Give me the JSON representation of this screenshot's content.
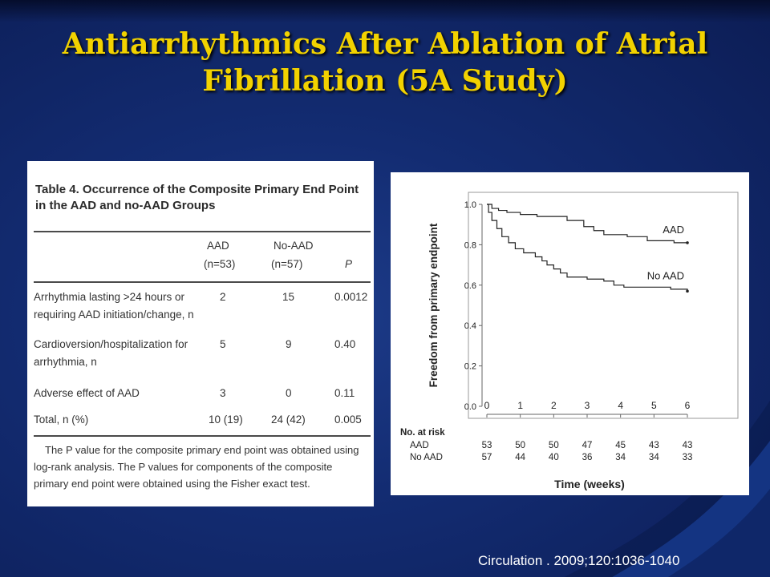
{
  "slide": {
    "title": "Antiarrhythmics After Ablation of Atrial Fibrillation (5A Study)",
    "citation": "Circulation . 2009;120:1036-1040"
  },
  "table": {
    "caption": "Table 4.   Occurrence of the Composite Primary End Point in the AAD and no-AAD Groups",
    "headers": {
      "aad": "AAD",
      "aad_n": "(n=53)",
      "noaad": "No-AAD",
      "noaad_n": "(n=57)",
      "p": "P"
    },
    "rows": [
      {
        "label1": "Arrhythmia lasting >24 hours or",
        "label2": "requiring AAD initiation/change, n",
        "aad": "2",
        "noaad": "15",
        "p": "0.0012"
      },
      {
        "label1": "Cardioversion/hospitalization for",
        "label2": "arrhythmia, n",
        "aad": "5",
        "noaad": "9",
        "p": "0.40"
      },
      {
        "label1": "Adverse effect of AAD",
        "label2": "",
        "aad": "3",
        "noaad": "0",
        "p": "0.11"
      },
      {
        "label1": "Total, n (%)",
        "label2": "",
        "aad": "10 (19)",
        "noaad": "24 (42)",
        "p": "0.005"
      }
    ],
    "footnote": "The P value for the composite primary end point was obtained using log-rank analysis. The P values for components of the composite primary end point were obtained using the Fisher exact test."
  },
  "chart_data": {
    "type": "line",
    "xlabel": "Time (weeks)",
    "ylabel": "Freedom from primary endpoint",
    "xlim": [
      0,
      6
    ],
    "ylim": [
      0,
      1.0
    ],
    "xticks": [
      "0",
      "1",
      "2",
      "3",
      "4",
      "5",
      "6"
    ],
    "yticks": [
      "0.0",
      "0.2",
      "0.4",
      "0.6",
      "0.8",
      "1.0"
    ],
    "series": [
      {
        "name": "AAD",
        "color": "#222222",
        "x": [
          0,
          0.15,
          0.35,
          0.6,
          1.0,
          1.5,
          2.0,
          2.4,
          2.9,
          3.2,
          3.5,
          4.2,
          4.8,
          5.6,
          6.0
        ],
        "y": [
          1.0,
          0.98,
          0.97,
          0.96,
          0.95,
          0.94,
          0.94,
          0.92,
          0.89,
          0.87,
          0.85,
          0.84,
          0.82,
          0.81,
          0.81
        ]
      },
      {
        "name": "No AAD",
        "color": "#222222",
        "x": [
          0,
          0.05,
          0.15,
          0.3,
          0.45,
          0.65,
          0.85,
          1.1,
          1.45,
          1.65,
          1.8,
          2.0,
          2.2,
          2.4,
          3.0,
          3.5,
          3.8,
          4.1,
          4.5,
          5.5,
          6.0
        ],
        "y": [
          1.0,
          0.96,
          0.92,
          0.88,
          0.84,
          0.81,
          0.78,
          0.76,
          0.74,
          0.72,
          0.7,
          0.68,
          0.66,
          0.64,
          0.63,
          0.62,
          0.6,
          0.59,
          0.59,
          0.58,
          0.57
        ]
      }
    ],
    "at_risk": {
      "title": "No. at risk",
      "rows": [
        {
          "label": "AAD",
          "values": [
            "53",
            "50",
            "50",
            "47",
            "45",
            "43",
            "43"
          ]
        },
        {
          "label": "No AAD",
          "values": [
            "57",
            "44",
            "40",
            "36",
            "34",
            "34",
            "33"
          ]
        }
      ]
    }
  }
}
